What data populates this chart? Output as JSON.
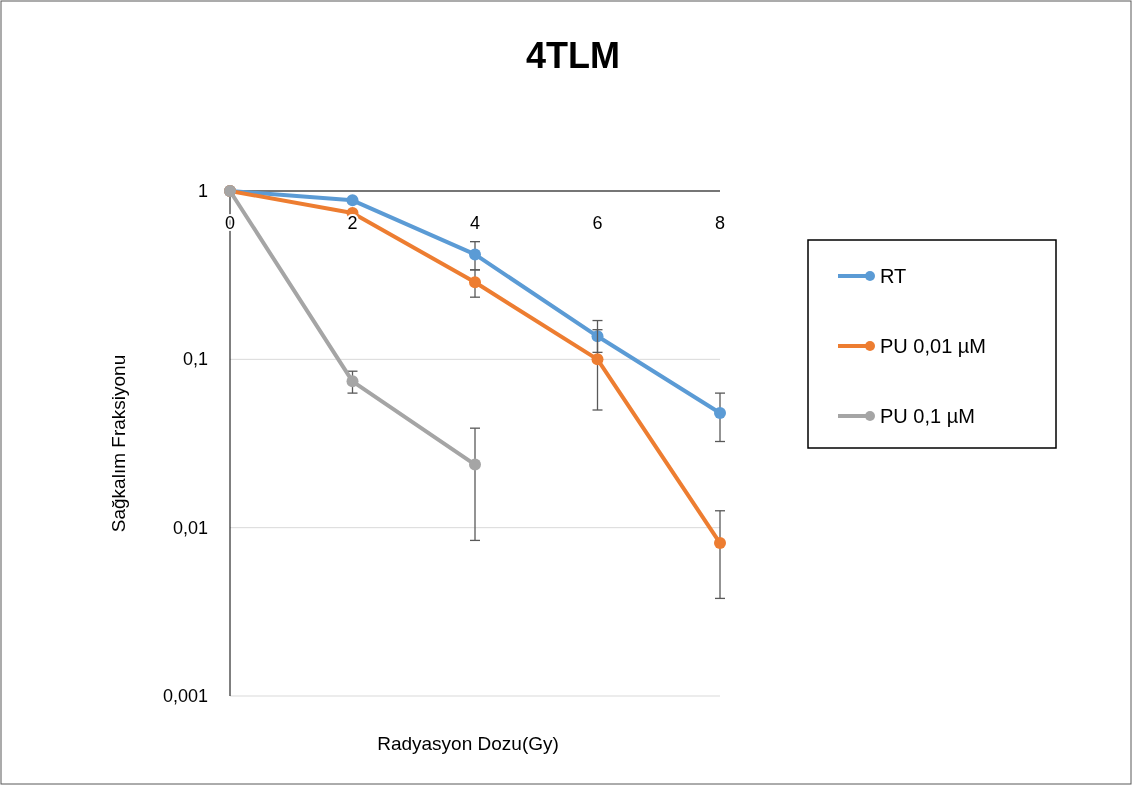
{
  "chart_data": {
    "type": "line",
    "title": "4TLM",
    "xlabel": "Radyasyon Dozu(Gy)",
    "ylabel": "Sağkalım Fraksiyonu",
    "x": [
      0,
      2,
      4,
      6,
      8
    ],
    "xlim": [
      0,
      8
    ],
    "xticks": [
      0,
      2,
      4,
      6,
      8
    ],
    "ylim": [
      0.001,
      1
    ],
    "yticks": [
      {
        "value": 1,
        "label": "1"
      },
      {
        "value": 0.1,
        "label": "0,1"
      },
      {
        "value": 0.01,
        "label": "0,01"
      },
      {
        "value": 0.001,
        "label": "0,001"
      }
    ],
    "log": "y",
    "grid": "y",
    "legend": "right",
    "marker": "circle",
    "line_style": "solid",
    "series": [
      {
        "name": "RT",
        "color": "#5b9bd5",
        "values": [
          1,
          0.88,
          0.42,
          0.137,
          0.048
        ],
        "errors": [
          null,
          null,
          [
            0.34,
            0.5
          ],
          [
            0.11,
            0.17
          ],
          [
            0.0325,
            0.063
          ]
        ]
      },
      {
        "name": "PU 0,01 µM",
        "color": "#ed7d31",
        "values": [
          1,
          0.74,
          0.287,
          0.1,
          0.0081
        ],
        "errors": [
          null,
          null,
          [
            0.234,
            0.34
          ],
          [
            0.05,
            0.15
          ],
          [
            0.0038,
            0.0126
          ]
        ]
      },
      {
        "name": "PU 0,1 µM",
        "color": "#a5a5a5",
        "values": [
          1,
          0.074,
          0.0237,
          null,
          null
        ],
        "errors": [
          null,
          [
            0.063,
            0.085
          ],
          [
            0.0084,
            0.039
          ],
          null,
          null
        ]
      }
    ]
  }
}
